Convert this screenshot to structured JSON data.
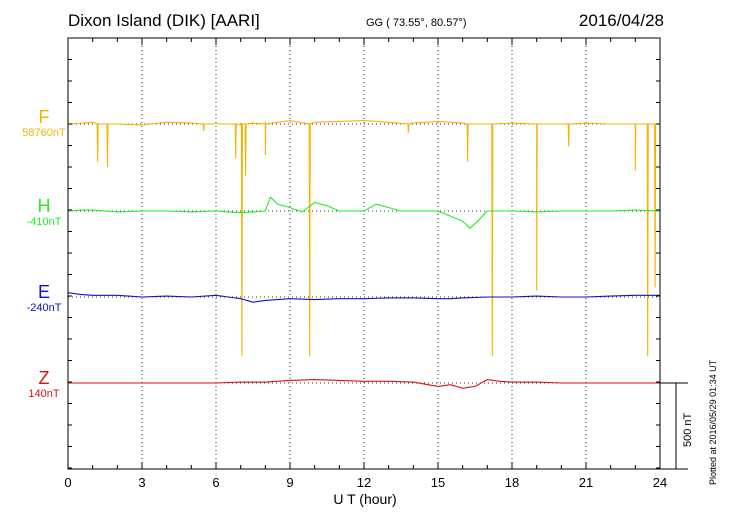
{
  "header": {
    "title": "Dixon Island (DIK)  [AARI]",
    "coords": "GG ( 73.55°,  80.57°)",
    "date": "2016/04/28"
  },
  "components": [
    {
      "letter": "F",
      "baseline": "58760nT",
      "color": "#f5b400"
    },
    {
      "letter": "H",
      "baseline": "-410nT",
      "color": "#22ee22"
    },
    {
      "letter": "E",
      "baseline": "-240nT",
      "color": "#1010cc"
    },
    {
      "letter": "Z",
      "baseline": "140nT",
      "color": "#dd1111"
    }
  ],
  "scale_bar_label": "500 nT",
  "plotted_note": "Plotted at 2016/05/29 01:34 UT",
  "chart_data": {
    "type": "line",
    "xlabel": "U T (hour)",
    "xlim": [
      0,
      24
    ],
    "x_ticks": [
      0,
      3,
      6,
      9,
      12,
      15,
      18,
      21,
      24
    ],
    "grid": "vertical dotted lines every 3 hours, horizontal dotted baseline per component",
    "scale_bar_nT": 500,
    "series": [
      {
        "name": "F",
        "baseline_nT": 58760,
        "color": "#f5b400",
        "points": [
          [
            0,
            0
          ],
          [
            1,
            10
          ],
          [
            2,
            0
          ],
          [
            3,
            -5
          ],
          [
            4,
            10
          ],
          [
            5,
            5
          ],
          [
            6,
            0
          ],
          [
            7,
            -5
          ],
          [
            7.5,
            5
          ],
          [
            8,
            5
          ],
          [
            9,
            20
          ],
          [
            10,
            10
          ],
          [
            11,
            15
          ],
          [
            12,
            20
          ],
          [
            13,
            10
          ],
          [
            14,
            5
          ],
          [
            15,
            15
          ],
          [
            16,
            5
          ],
          [
            17,
            0
          ],
          [
            18,
            5
          ],
          [
            19,
            0
          ],
          [
            20,
            0
          ],
          [
            21,
            5
          ],
          [
            22,
            0
          ],
          [
            23,
            0
          ],
          [
            24,
            0
          ]
        ],
        "spikes": [
          [
            1.2,
            -220
          ],
          [
            1.6,
            -250
          ],
          [
            5.5,
            -40
          ],
          [
            6.8,
            -200
          ],
          [
            7.05,
            -1350
          ],
          [
            7.2,
            -300
          ],
          [
            8.0,
            -180
          ],
          [
            9.8,
            -1350
          ],
          [
            13.8,
            -50
          ],
          [
            16.2,
            -220
          ],
          [
            17.2,
            -1350
          ],
          [
            19.0,
            -970
          ],
          [
            20.3,
            -130
          ],
          [
            23.0,
            -270
          ],
          [
            23.5,
            -1350
          ],
          [
            23.8,
            -950
          ]
        ]
      },
      {
        "name": "H",
        "baseline_nT": -410,
        "color": "#22ee22",
        "points": [
          [
            0,
            0
          ],
          [
            0.5,
            5
          ],
          [
            1,
            5
          ],
          [
            2,
            -5
          ],
          [
            3,
            0
          ],
          [
            4,
            0
          ],
          [
            5,
            -5
          ],
          [
            6,
            0
          ],
          [
            6.5,
            -5
          ],
          [
            7,
            -10
          ],
          [
            7.5,
            -5
          ],
          [
            8,
            0
          ],
          [
            8.2,
            80
          ],
          [
            8.5,
            40
          ],
          [
            9,
            20
          ],
          [
            9.5,
            -5
          ],
          [
            10,
            50
          ],
          [
            10.5,
            30
          ],
          [
            11,
            0
          ],
          [
            12,
            0
          ],
          [
            12.5,
            40
          ],
          [
            13,
            20
          ],
          [
            13.5,
            0
          ],
          [
            14,
            0
          ],
          [
            15,
            0
          ],
          [
            16,
            -60
          ],
          [
            16.3,
            -100
          ],
          [
            16.6,
            -60
          ],
          [
            17,
            0
          ],
          [
            18,
            0
          ],
          [
            19,
            -5
          ],
          [
            20,
            0
          ],
          [
            21,
            0
          ],
          [
            22,
            0
          ],
          [
            23,
            5
          ],
          [
            24,
            0
          ]
        ]
      },
      {
        "name": "E",
        "baseline_nT": -240,
        "color": "#1010cc",
        "points": [
          [
            0,
            25
          ],
          [
            0.5,
            15
          ],
          [
            1,
            10
          ],
          [
            2,
            10
          ],
          [
            3,
            0
          ],
          [
            4,
            5
          ],
          [
            5,
            0
          ],
          [
            6,
            10
          ],
          [
            6.5,
            0
          ],
          [
            7,
            -10
          ],
          [
            7.5,
            -30
          ],
          [
            8,
            -20
          ],
          [
            9,
            -10
          ],
          [
            10,
            -15
          ],
          [
            11,
            -10
          ],
          [
            12,
            -10
          ],
          [
            13,
            -5
          ],
          [
            14,
            -5
          ],
          [
            15,
            -10
          ],
          [
            15.5,
            -10
          ],
          [
            16,
            -5
          ],
          [
            17,
            0
          ],
          [
            18,
            0
          ],
          [
            19,
            5
          ],
          [
            20,
            0
          ],
          [
            21,
            0
          ],
          [
            22,
            5
          ],
          [
            23,
            10
          ],
          [
            24,
            10
          ]
        ]
      },
      {
        "name": "Z",
        "baseline_nT": 140,
        "color": "#dd1111",
        "points": [
          [
            0,
            0
          ],
          [
            1,
            0
          ],
          [
            2,
            0
          ],
          [
            3,
            0
          ],
          [
            4,
            0
          ],
          [
            5,
            0
          ],
          [
            6,
            0
          ],
          [
            7,
            5
          ],
          [
            8,
            5
          ],
          [
            9,
            15
          ],
          [
            10,
            20
          ],
          [
            11,
            15
          ],
          [
            12,
            10
          ],
          [
            13,
            10
          ],
          [
            14,
            5
          ],
          [
            15,
            -20
          ],
          [
            15.5,
            -10
          ],
          [
            16,
            -30
          ],
          [
            16.5,
            -20
          ],
          [
            17,
            20
          ],
          [
            17.5,
            10
          ],
          [
            18,
            5
          ],
          [
            19,
            5
          ],
          [
            20,
            0
          ],
          [
            21,
            0
          ],
          [
            22,
            0
          ],
          [
            23,
            0
          ],
          [
            24,
            0
          ]
        ]
      }
    ]
  }
}
